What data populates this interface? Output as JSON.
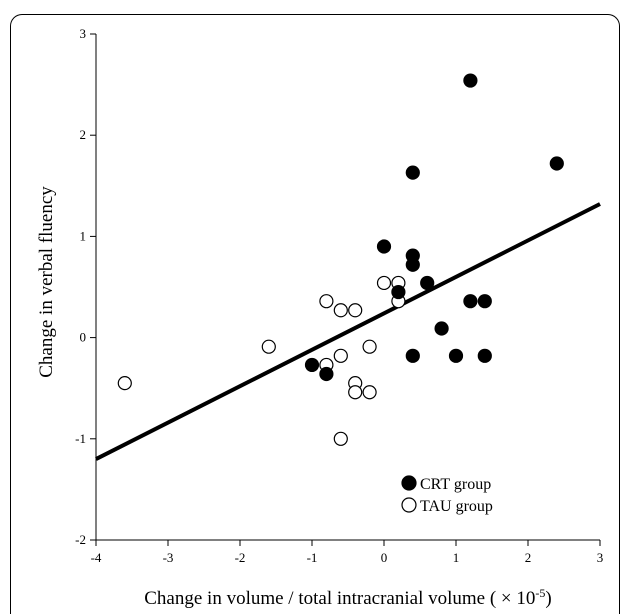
{
  "chart_data": {
    "type": "scatter",
    "xlabel": "Change in volume / total intracranial volume ( × 10",
    "xlabel_exp": "-5",
    "xlabel_close": ")",
    "ylabel": "Change in verbal fluency",
    "xlim": [
      -4,
      3
    ],
    "ylim": [
      -2,
      3
    ],
    "xticks": [
      "-4",
      "-3",
      "-2",
      "-1",
      "0",
      "1",
      "2",
      "3"
    ],
    "yticks": [
      "-2",
      "-1",
      "0",
      "1",
      "2",
      "3"
    ],
    "grid": false,
    "legend_position": "bottom-right",
    "series": [
      {
        "name": "CRT group",
        "marker": "filled-circle",
        "color": "#000000",
        "points": [
          [
            1.2,
            2.54
          ],
          [
            2.4,
            1.72
          ],
          [
            0.4,
            1.63
          ],
          [
            0.0,
            0.9
          ],
          [
            0.4,
            0.81
          ],
          [
            0.4,
            0.72
          ],
          [
            0.2,
            0.45
          ],
          [
            0.6,
            0.54
          ],
          [
            1.2,
            0.36
          ],
          [
            1.4,
            0.36
          ],
          [
            0.8,
            0.09
          ],
          [
            0.4,
            -0.18
          ],
          [
            1.0,
            -0.18
          ],
          [
            1.4,
            -0.18
          ],
          [
            -1.0,
            -0.27
          ],
          [
            -0.8,
            -0.36
          ]
        ]
      },
      {
        "name": "TAU group",
        "marker": "open-circle",
        "color": "#000000",
        "points": [
          [
            0.0,
            0.54
          ],
          [
            0.2,
            0.54
          ],
          [
            0.2,
            0.36
          ],
          [
            -0.8,
            0.36
          ],
          [
            -0.6,
            0.27
          ],
          [
            -0.4,
            0.27
          ],
          [
            -1.6,
            -0.09
          ],
          [
            -0.2,
            -0.09
          ],
          [
            -0.6,
            -0.18
          ],
          [
            -0.8,
            -0.27
          ],
          [
            -3.6,
            -0.45
          ],
          [
            -0.4,
            -0.45
          ],
          [
            -0.4,
            -0.54
          ],
          [
            -0.2,
            -0.54
          ],
          [
            -0.6,
            -1.0
          ]
        ]
      }
    ],
    "regression_line": {
      "x": [
        -4,
        3
      ],
      "y": [
        -1.2,
        1.32
      ],
      "color": "#000000"
    }
  }
}
